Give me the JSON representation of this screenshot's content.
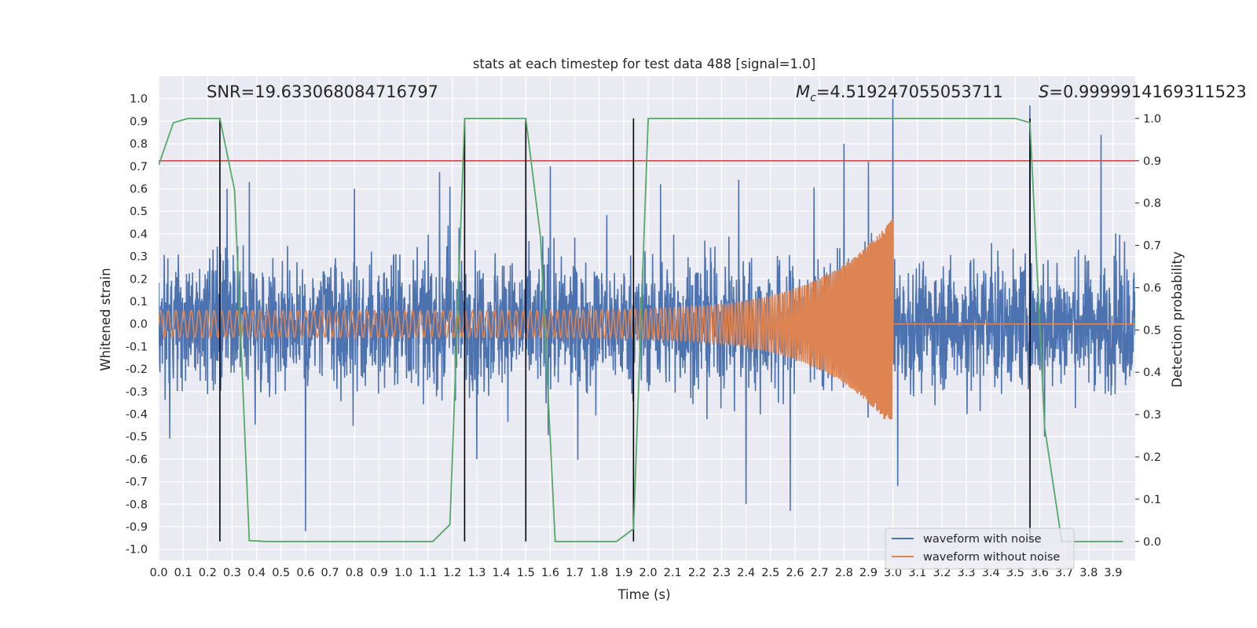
{
  "chart_data": {
    "type": "line",
    "title": "stats at each timestep for test data 488 [signal=1.0]",
    "xlabel": "Time (s)",
    "ylabel": "Whitened strain",
    "y2label": "Detection probability",
    "xlim": [
      0.0,
      3.99
    ],
    "ylim": [
      -1.05,
      1.1
    ],
    "y2lim": [
      -0.045,
      1.1
    ],
    "x_ticks": [
      "0.0",
      "0.1",
      "0.2",
      "0.3",
      "0.4",
      "0.5",
      "0.6",
      "0.7",
      "0.8",
      "0.9",
      "1.0",
      "1.1",
      "1.2",
      "1.3",
      "1.4",
      "1.5",
      "1.6",
      "1.7",
      "1.8",
      "1.9",
      "2.0",
      "2.1",
      "2.2",
      "2.3",
      "2.4",
      "2.5",
      "2.6",
      "2.7",
      "2.8",
      "2.9",
      "3.0",
      "3.1",
      "3.2",
      "3.3",
      "3.4",
      "3.5",
      "3.6",
      "3.7",
      "3.8",
      "3.9"
    ],
    "y_ticks": [
      "1.0",
      "0.9",
      "0.8",
      "0.7",
      "0.6",
      "0.5",
      "0.4",
      "0.3",
      "0.2",
      "0.1",
      "0.0",
      "-0.1",
      "-0.2",
      "-0.3",
      "-0.4",
      "-0.5",
      "-0.6",
      "-0.7",
      "-0.8",
      "-0.9",
      "-1.0"
    ],
    "y2_ticks": [
      "1.0",
      "0.9",
      "0.8",
      "0.7",
      "0.6",
      "0.5",
      "0.4",
      "0.3",
      "0.2",
      "0.1",
      "0.0"
    ],
    "annotations": {
      "snr": "SNR=19.633068084716797",
      "mc_symbol": "M",
      "mc_subscript": "c",
      "mc_value": "=4.519247055053711",
      "s_symbol": "S",
      "s_value": "=0.9999914169311523"
    },
    "threshold": 0.9,
    "vertical_lines_x": [
      0.25,
      1.25,
      1.5,
      1.94,
      3.56
    ],
    "detection_probability": {
      "x": [
        0.0,
        0.06,
        0.12,
        0.19,
        0.25,
        0.31,
        0.37,
        0.44,
        0.5,
        0.56,
        0.62,
        0.69,
        0.75,
        0.81,
        0.87,
        0.94,
        1.0,
        1.06,
        1.12,
        1.19,
        1.25,
        1.31,
        1.37,
        1.44,
        1.5,
        1.56,
        1.62,
        1.69,
        1.75,
        1.81,
        1.87,
        1.94,
        2.0,
        2.06,
        2.12,
        2.19,
        2.25,
        2.31,
        2.37,
        2.44,
        2.5,
        2.56,
        2.62,
        2.69,
        2.75,
        2.81,
        2.87,
        2.94,
        3.0,
        3.06,
        3.12,
        3.19,
        3.25,
        3.31,
        3.37,
        3.44,
        3.5,
        3.56,
        3.62,
        3.69,
        3.75,
        3.81,
        3.87,
        3.94
      ],
      "y": [
        0.89,
        0.99,
        1.0,
        1.0,
        1.0,
        0.83,
        0.002,
        0.0,
        0.0,
        0.0,
        0.0,
        0.0,
        0.0,
        0.0,
        0.0,
        0.0,
        0.0,
        0.0,
        0.0,
        0.04,
        1.0,
        1.0,
        1.0,
        1.0,
        1.0,
        0.72,
        0.0,
        0.0,
        0.0,
        0.0,
        0.0,
        0.03,
        1.0,
        1.0,
        1.0,
        1.0,
        1.0,
        1.0,
        1.0,
        1.0,
        1.0,
        1.0,
        1.0,
        1.0,
        1.0,
        1.0,
        1.0,
        1.0,
        1.0,
        1.0,
        1.0,
        1.0,
        1.0,
        1.0,
        1.0,
        1.0,
        1.0,
        0.99,
        0.27,
        0.0,
        0.0,
        0.0,
        0.0,
        0.0
      ]
    },
    "noise_envelope": {
      "x": [
        0.0,
        3.99
      ],
      "typical_abs": 0.25,
      "peaks": [
        [
          0.28,
          0.6
        ],
        [
          0.37,
          0.63
        ],
        [
          0.6,
          -0.92
        ],
        [
          0.8,
          0.6
        ],
        [
          1.19,
          0.61
        ],
        [
          1.3,
          -0.6
        ],
        [
          1.5,
          0.55
        ],
        [
          1.6,
          0.7
        ],
        [
          2.05,
          0.62
        ],
        [
          2.37,
          0.64
        ],
        [
          2.4,
          -0.8
        ],
        [
          2.58,
          -0.83
        ],
        [
          2.8,
          0.8
        ],
        [
          2.9,
          0.72
        ],
        [
          3.0,
          1.0
        ],
        [
          3.02,
          -0.72
        ],
        [
          3.62,
          -0.5
        ],
        [
          3.85,
          0.84
        ],
        [
          3.56,
          0.97
        ]
      ]
    },
    "chirp": {
      "amplitude_start": 0.06,
      "amplitude_end": 0.47,
      "t_merger": 3.0,
      "f_start": 32,
      "f_end": 220
    },
    "series": [
      {
        "name": "waveform with noise",
        "color": "#4c72b0"
      },
      {
        "name": "waveform without noise",
        "color": "#dd8452"
      },
      {
        "name": "",
        "color": "#55a868"
      }
    ],
    "colors": {
      "plot_background": "#eaeaf2",
      "grid": "#ffffff",
      "threshold_line": "#c44e52",
      "vertical_lines": "#000000",
      "detection": "#55a868"
    },
    "legend_placement": "bottom-right",
    "grid": true
  }
}
